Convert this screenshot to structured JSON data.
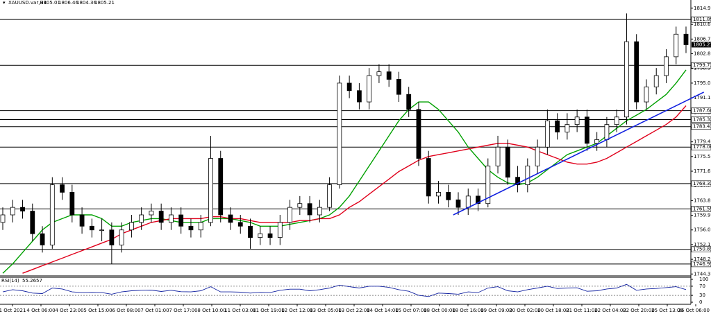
{
  "chart_data": {
    "type": "candlestick",
    "header": {
      "symbol": "XAUUSD.var,H1",
      "quote": [
        1805.01,
        1806.46,
        1804.36,
        1805.21
      ]
    },
    "candles": {
      "open": [
        1758,
        1760,
        1762,
        1761,
        1755,
        1752,
        1768,
        1766,
        1760,
        1757,
        1756,
        1756,
        1752,
        1756,
        1758,
        1760,
        1761,
        1758,
        1760,
        1757,
        1756,
        1758,
        1775,
        1760,
        1758,
        1757,
        1754,
        1755,
        1754,
        1758,
        1762,
        1763,
        1760,
        1762,
        1768,
        1795,
        1793,
        1790,
        1797,
        1798,
        1796,
        1792,
        1788,
        1775,
        1765,
        1766,
        1764,
        1762,
        1765,
        1763,
        1773,
        1778,
        1770,
        1768,
        1773,
        1778,
        1785,
        1782,
        1784,
        1786,
        1779,
        1780,
        1784,
        1786,
        1806,
        1790,
        1794,
        1797,
        1802,
        1808
      ],
      "high": [
        1762,
        1764,
        1764,
        1763,
        1757,
        1770,
        1770,
        1768,
        1762,
        1759,
        1759,
        1758,
        1758,
        1760,
        1762,
        1763,
        1763,
        1762,
        1762,
        1759,
        1760,
        1781,
        1777,
        1762,
        1760,
        1759,
        1757,
        1757,
        1760,
        1764,
        1765,
        1765,
        1764,
        1770,
        1797,
        1797,
        1795,
        1799,
        1800,
        1800,
        1798,
        1794,
        1790,
        1777,
        1769,
        1768,
        1766,
        1767,
        1767,
        1775,
        1781,
        1780,
        1773,
        1775,
        1780,
        1788,
        1787,
        1787,
        1788,
        1788,
        1782,
        1786,
        1788,
        1813.5,
        1808,
        1796,
        1799,
        1804,
        1810,
        1810
      ],
      "low": [
        1756,
        1758,
        1759,
        1753,
        1750,
        1751,
        1764,
        1758,
        1755,
        1754,
        1753,
        1747,
        1750,
        1754,
        1756,
        1758,
        1756,
        1756,
        1755,
        1754,
        1754,
        1757,
        1758,
        1756,
        1755,
        1751,
        1752,
        1752,
        1752,
        1756,
        1760,
        1758,
        1758,
        1761,
        1767,
        1791,
        1788,
        1788,
        1795,
        1794,
        1790,
        1786,
        1773,
        1763,
        1763,
        1762,
        1760,
        1760,
        1761,
        1762,
        1771,
        1768,
        1766,
        1766,
        1771,
        1776,
        1780,
        1780,
        1782,
        1777,
        1777,
        1778,
        1782,
        1784,
        1788,
        1788,
        1792,
        1795,
        1800,
        1803
      ],
      "close": [
        1760,
        1762,
        1761,
        1755,
        1752,
        1768,
        1766,
        1760,
        1757,
        1756,
        1756,
        1752,
        1756,
        1758,
        1760,
        1761,
        1758,
        1760,
        1757,
        1756,
        1758,
        1775,
        1760,
        1758,
        1757,
        1754,
        1755,
        1754,
        1758,
        1762,
        1763,
        1760,
        1762,
        1768,
        1795,
        1793,
        1790,
        1797,
        1798,
        1796,
        1792,
        1788,
        1775,
        1765,
        1766,
        1764,
        1762,
        1765,
        1763,
        1773,
        1778,
        1770,
        1768,
        1773,
        1778,
        1785,
        1782,
        1784,
        1786,
        1779,
        1780,
        1784,
        1786,
        1806,
        1790,
        1794,
        1797,
        1802,
        1808,
        1805.21
      ]
    },
    "moving_averages": [
      {
        "color": "#00a000",
        "values": [
          1744.5,
          1747,
          1750,
          1753,
          1756,
          1758,
          1759,
          1760,
          1760,
          1760,
          1759,
          1757,
          1757,
          1758,
          1758.5,
          1759,
          1759,
          1758.5,
          1758,
          1758,
          1758,
          1759,
          1759,
          1759,
          1758.5,
          1758,
          1757,
          1757,
          1757,
          1757.5,
          1758,
          1758.5,
          1759,
          1760,
          1762,
          1765,
          1769,
          1773,
          1777,
          1781,
          1785,
          1788,
          1790,
          1790,
          1788,
          1785,
          1782,
          1778,
          1775,
          1772,
          1770,
          1768.5,
          1768,
          1768.5,
          1770,
          1772,
          1774,
          1776,
          1777,
          1778,
          1779,
          1781,
          1783,
          1785,
          1786.5,
          1788,
          1790,
          1792,
          1795,
          1798.5
        ]
      },
      {
        "color": "#e0001b",
        "values": [
          null,
          null,
          1744.5,
          1745.5,
          1746.5,
          1747.5,
          1748.5,
          1749.5,
          1750.5,
          1751.5,
          1752.5,
          1753.5,
          1755,
          1756,
          1757,
          1758,
          1758.5,
          1759,
          1759,
          1759,
          1759,
          1759.5,
          1759.5,
          1759,
          1759,
          1758.5,
          1758,
          1758,
          1758,
          1758,
          1758.5,
          1758.5,
          1759,
          1759,
          1760,
          1762,
          1763.5,
          1765.5,
          1767.5,
          1769.5,
          1771.5,
          1773,
          1774.5,
          1775.5,
          1776,
          1776.5,
          1777,
          1777.5,
          1778,
          1778.5,
          1779,
          1779,
          1778.5,
          1778,
          1777,
          1776,
          1775,
          1774,
          1773.5,
          1773.5,
          1774,
          1775,
          1776.5,
          1778,
          1779.5,
          1781,
          1782.5,
          1784,
          1786,
          1789
        ]
      }
    ],
    "trendline": {
      "color": "#1020e0",
      "from": [
        45.5,
        1760.0
      ],
      "to": [
        70.8,
        1792.6
      ]
    },
    "levels": [
      1811.89,
      1799.73,
      1787.68,
      1785.32,
      1783.43,
      {
        "value": 1778,
        "label": "1778.00"
      },
      1768.32,
      1761.59,
      1750.85,
      1746.95
    ],
    "ylim": [
      1743.8,
      1815.6
    ],
    "yticks": [
      {
        "value": 1814.9,
        "label": "1814.90"
      },
      {
        "value": 1810.6,
        "label": "1810.60"
      },
      {
        "value": 1806.7,
        "label": "1806.70"
      },
      {
        "value": 1802.8,
        "label": "1802.80"
      },
      {
        "value": 1798.9,
        "label": "1798.90"
      },
      {
        "value": 1795,
        "label": "1795.00"
      },
      {
        "value": 1791.1,
        "label": "1791.10"
      },
      {
        "value": 1787.2,
        "label": "1787.20"
      },
      {
        "value": 1783.3,
        "label": "1783.30"
      },
      {
        "value": 1779.4,
        "label": "1779.40"
      },
      {
        "value": 1775.5,
        "label": "1775.50"
      },
      {
        "value": 1771.6,
        "label": "1771.60"
      },
      {
        "value": 1767.7,
        "label": "1767.70"
      },
      {
        "value": 1763.8,
        "label": "1763.80"
      },
      {
        "value": 1759.9,
        "label": "1759.90"
      },
      {
        "value": 1756,
        "label": "1756.00"
      },
      {
        "value": 1752.1,
        "label": "1752.10"
      },
      {
        "value": 1748.2,
        "label": "1748.20"
      },
      {
        "value": 1744.3,
        "label": "1744.30"
      }
    ],
    "x_labels": [
      "1 Oct 2021",
      "4 Oct 06:00",
      "4 Oct 23:00",
      "5 Oct 15:00",
      "6 Oct 08:00",
      "7 Oct 01:00",
      "7 Oct 17:00",
      "8 Oct 10:00",
      "11 Oct 03:00",
      "11 Oct 19:00",
      "12 Oct 12:00",
      "13 Oct 05:00",
      "13 Oct 22:00",
      "14 Oct 14:00",
      "15 Oct 07:00",
      "18 Oct 00:00",
      "18 Oct 16:00",
      "19 Oct 09:00",
      "20 Oct 02:00",
      "20 Oct 18:00",
      "21 Oct 11:00",
      "22 Oct 04:00",
      "22 Oct 20:00",
      "25 Oct 13:00",
      "26 Oct 06:00"
    ],
    "rsi": {
      "label": "RSI(14)",
      "color": "#1020a0",
      "values": [
        45,
        55,
        50,
        40,
        38,
        62,
        58,
        45,
        42,
        43,
        42,
        35,
        45,
        50,
        52,
        53,
        47,
        52,
        46,
        45,
        50,
        68,
        45,
        45,
        44,
        40,
        43,
        42,
        52,
        57,
        57,
        50,
        55,
        62,
        75,
        68,
        62,
        70,
        70,
        65,
        55,
        48,
        30,
        25,
        40,
        38,
        35,
        45,
        42,
        62,
        68,
        50,
        45,
        55,
        62,
        70,
        60,
        62,
        63,
        48,
        50,
        58,
        62,
        78,
        52,
        58,
        60,
        64,
        68,
        55.2657
      ],
      "ylim": [
        0,
        100
      ],
      "yticks": [
        100,
        70,
        30,
        0
      ],
      "levels": [
        70,
        30
      ]
    }
  }
}
